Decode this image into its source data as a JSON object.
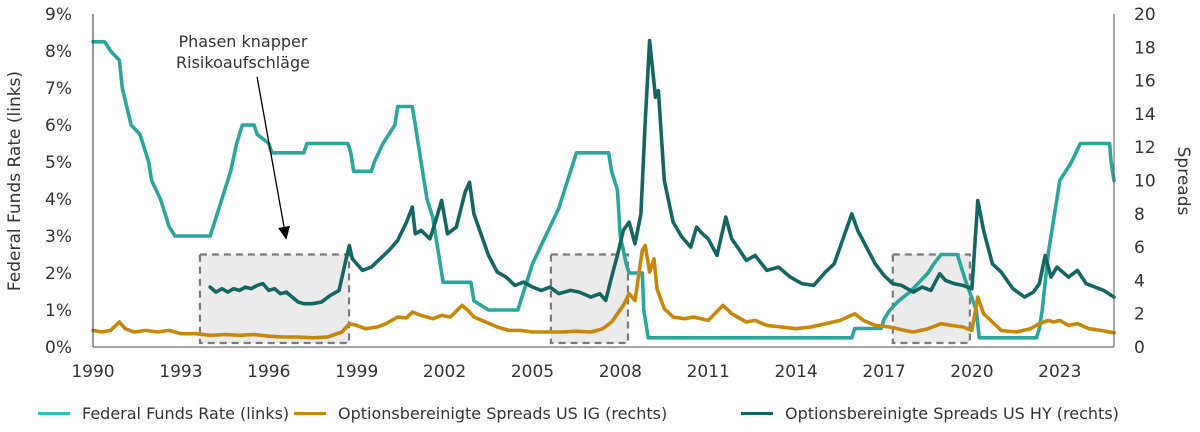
{
  "chart_data": {
    "type": "line",
    "title": "",
    "xlabel": "",
    "ylabel_left": "Federal Funds Rate (links)",
    "ylabel_right": "Spreads",
    "xlim": [
      1990,
      2024.85
    ],
    "ylim_left": [
      0,
      9
    ],
    "ylim_right": [
      0,
      20
    ],
    "grid": false,
    "x_ticks": [
      "1990",
      "1993",
      "1996",
      "1999",
      "2002",
      "2005",
      "2008",
      "2011",
      "2014",
      "2017",
      "2020",
      "2023"
    ],
    "x_tick_values": [
      1990,
      1993,
      1996,
      1999,
      2002,
      2005,
      2008,
      2011,
      2014,
      2017,
      2020,
      2023
    ],
    "y_left_ticks": [
      "0%",
      "1%",
      "2%",
      "3%",
      "4%",
      "5%",
      "6%",
      "7%",
      "8%",
      "9%"
    ],
    "y_left_tick_values": [
      0,
      1,
      2,
      3,
      4,
      5,
      6,
      7,
      8,
      9
    ],
    "y_right_ticks": [
      "0",
      "2",
      "4",
      "6",
      "8",
      "10",
      "12",
      "14",
      "16",
      "18",
      "20"
    ],
    "y_right_tick_values": [
      0,
      2,
      4,
      6,
      8,
      10,
      12,
      14,
      16,
      18,
      20
    ],
    "legend_placement": "bottom",
    "annotation": {
      "lines": [
        "Phasen knapper",
        "Risikoaufschläge"
      ],
      "arrow_from": [
        1995.6,
        7.3
      ],
      "arrow_to": [
        1996.6,
        2.9
      ]
    },
    "shaded_periods": [
      {
        "start": 1993.65,
        "end": 1998.74,
        "top_left_axis": 2.5
      },
      {
        "start": 2005.63,
        "end": 2008.26,
        "top_left_axis": 2.5
      },
      {
        "start": 2017.3,
        "end": 2019.93,
        "top_left_axis": 2.5
      }
    ],
    "series": [
      {
        "name": "Federal Funds Rate (links)",
        "axis": "left",
        "color": "#2aa79b",
        "x": [
          1990.0,
          1990.4,
          1990.6,
          1990.9,
          1991.0,
          1991.3,
          1991.6,
          1991.9,
          1992.0,
          1992.3,
          1992.6,
          1992.8,
          1994.0,
          1994.1,
          1994.3,
          1994.5,
          1994.7,
          1994.9,
          1995.1,
          1995.5,
          1995.6,
          1996.0,
          1996.1,
          1997.2,
          1997.3,
          1998.7,
          1998.8,
          1998.9,
          1999.5,
          1999.6,
          1999.9,
          2000.1,
          2000.3,
          2000.4,
          2000.9,
          2001.0,
          2001.2,
          2001.4,
          2001.6,
          2001.8,
          2001.95,
          2002.9,
          2003.0,
          2003.5,
          2004.5,
          2004.6,
          2004.8,
          2005.0,
          2005.3,
          2005.6,
          2005.9,
          2006.2,
          2006.5,
          2007.6,
          2007.7,
          2007.9,
          2008.0,
          2008.2,
          2008.3,
          2008.75,
          2008.8,
          2008.95,
          2015.9,
          2016.0,
          2016.9,
          2017.0,
          2017.2,
          2017.5,
          2017.9,
          2018.2,
          2018.5,
          2018.7,
          2018.95,
          2019.5,
          2019.6,
          2019.7,
          2019.8,
          2020.15,
          2020.25,
          2022.2,
          2022.3,
          2022.4,
          2022.5,
          2022.6,
          2022.75,
          2022.9,
          2023.0,
          2023.2,
          2023.4,
          2023.55,
          2023.7,
          2024.7,
          2024.75,
          2024.85
        ],
        "values": [
          8.25,
          8.25,
          8.0,
          7.75,
          7.0,
          6.0,
          5.75,
          5.0,
          4.5,
          4.0,
          3.25,
          3.0,
          3.0,
          3.25,
          3.75,
          4.25,
          4.75,
          5.5,
          6.0,
          6.0,
          5.75,
          5.5,
          5.25,
          5.25,
          5.5,
          5.5,
          5.25,
          4.75,
          4.75,
          5.0,
          5.5,
          5.75,
          6.0,
          6.5,
          6.5,
          6.0,
          5.0,
          4.0,
          3.5,
          2.5,
          1.75,
          1.75,
          1.25,
          1.0,
          1.0,
          1.25,
          1.75,
          2.25,
          2.75,
          3.25,
          3.75,
          4.5,
          5.25,
          5.25,
          4.75,
          4.25,
          3.0,
          2.25,
          2.0,
          2.0,
          1.0,
          0.25,
          0.25,
          0.5,
          0.5,
          0.75,
          1.0,
          1.25,
          1.5,
          1.75,
          2.0,
          2.25,
          2.5,
          2.5,
          2.25,
          2.0,
          1.75,
          1.0,
          0.25,
          0.25,
          0.5,
          1.0,
          1.75,
          2.5,
          3.25,
          4.0,
          4.5,
          4.75,
          5.0,
          5.25,
          5.5,
          5.5,
          5.0,
          4.5
        ]
      },
      {
        "name": "Optionsbereinigte Spreads US IG (rechts)",
        "axis": "right",
        "color": "#c8870a",
        "x": [
          1990.0,
          1990.3,
          1990.6,
          1990.9,
          1991.1,
          1991.4,
          1991.8,
          1992.2,
          1992.6,
          1993.0,
          1993.5,
          1994.0,
          1994.5,
          1995.0,
          1995.5,
          1996.0,
          1996.5,
          1997.0,
          1997.5,
          1998.0,
          1998.5,
          1998.75,
          1999.0,
          1999.3,
          1999.7,
          2000.0,
          2000.4,
          2000.7,
          2000.9,
          2001.2,
          2001.6,
          2001.9,
          2002.2,
          2002.6,
          2002.8,
          2003.0,
          2003.4,
          2003.8,
          2004.2,
          2004.6,
          2005.0,
          2005.5,
          2006.0,
          2006.5,
          2007.0,
          2007.4,
          2007.7,
          2007.9,
          2008.1,
          2008.3,
          2008.5,
          2008.75,
          2008.85,
          2009.0,
          2009.15,
          2009.25,
          2009.5,
          2009.8,
          2010.2,
          2010.5,
          2011.0,
          2011.5,
          2011.8,
          2012.0,
          2012.3,
          2012.6,
          2013.0,
          2013.5,
          2014.0,
          2014.5,
          2015.0,
          2015.5,
          2016.0,
          2016.3,
          2016.7,
          2017.2,
          2017.7,
          2018.0,
          2018.5,
          2018.95,
          2019.3,
          2019.7,
          2020.0,
          2020.2,
          2020.4,
          2020.7,
          2021.0,
          2021.5,
          2022.0,
          2022.3,
          2022.6,
          2022.8,
          2023.0,
          2023.3,
          2023.6,
          2024.0,
          2024.4,
          2024.85
        ],
        "values": [
          1.0,
          0.9,
          1.0,
          1.5,
          1.1,
          0.9,
          1.0,
          0.9,
          1.0,
          0.8,
          0.8,
          0.7,
          0.75,
          0.7,
          0.75,
          0.65,
          0.6,
          0.6,
          0.55,
          0.6,
          0.9,
          1.4,
          1.3,
          1.1,
          1.2,
          1.4,
          1.8,
          1.75,
          2.1,
          1.9,
          1.7,
          1.9,
          1.8,
          2.5,
          2.2,
          1.8,
          1.5,
          1.2,
          1.0,
          1.0,
          0.9,
          0.9,
          0.9,
          0.95,
          0.9,
          1.1,
          1.5,
          2.0,
          2.5,
          3.2,
          2.8,
          5.8,
          6.1,
          4.5,
          5.3,
          3.5,
          2.3,
          1.8,
          1.7,
          1.8,
          1.6,
          2.5,
          2.0,
          1.8,
          1.5,
          1.6,
          1.3,
          1.2,
          1.1,
          1.2,
          1.4,
          1.6,
          2.0,
          1.6,
          1.3,
          1.2,
          1.0,
          0.9,
          1.1,
          1.4,
          1.3,
          1.2,
          1.0,
          3.0,
          2.0,
          1.5,
          1.0,
          0.9,
          1.1,
          1.4,
          1.6,
          1.5,
          1.6,
          1.3,
          1.4,
          1.1,
          1.0,
          0.85
        ]
      },
      {
        "name": "Optionsbereinigte Spreads US HY (rechts)",
        "axis": "right",
        "color": "#136760",
        "x": [
          1994.0,
          1994.2,
          1994.4,
          1994.6,
          1994.8,
          1995.0,
          1995.2,
          1995.4,
          1995.6,
          1995.8,
          1996.0,
          1996.2,
          1996.4,
          1996.6,
          1996.8,
          1997.0,
          1997.2,
          1997.5,
          1997.8,
          1998.1,
          1998.4,
          1998.6,
          1998.75,
          1998.85,
          1999.0,
          1999.2,
          1999.5,
          1999.8,
          2000.1,
          2000.4,
          2000.7,
          2000.9,
          2001.0,
          2001.2,
          2001.5,
          2001.7,
          2001.9,
          2002.1,
          2002.4,
          2002.7,
          2002.85,
          2003.0,
          2003.2,
          2003.5,
          2003.8,
          2004.1,
          2004.4,
          2004.7,
          2005.0,
          2005.3,
          2005.6,
          2005.9,
          2006.3,
          2006.6,
          2007.0,
          2007.3,
          2007.5,
          2007.7,
          2007.9,
          2008.1,
          2008.3,
          2008.5,
          2008.7,
          2008.85,
          2009.0,
          2009.2,
          2009.3,
          2009.5,
          2009.8,
          2010.1,
          2010.4,
          2010.6,
          2010.8,
          2011.0,
          2011.3,
          2011.6,
          2011.8,
          2012.0,
          2012.3,
          2012.6,
          2013.0,
          2013.4,
          2013.8,
          2014.2,
          2014.6,
          2015.0,
          2015.3,
          2015.6,
          2015.9,
          2016.1,
          2016.4,
          2016.7,
          2017.0,
          2017.3,
          2017.6,
          2018.0,
          2018.3,
          2018.6,
          2018.9,
          2019.1,
          2019.4,
          2019.7,
          2020.0,
          2020.2,
          2020.4,
          2020.7,
          2021.0,
          2021.4,
          2021.8,
          2022.1,
          2022.3,
          2022.5,
          2022.7,
          2022.9,
          2023.1,
          2023.3,
          2023.6,
          2023.9,
          2024.2,
          2024.5,
          2024.85
        ],
        "values": [
          3.6,
          3.3,
          3.5,
          3.3,
          3.5,
          3.4,
          3.6,
          3.5,
          3.7,
          3.8,
          3.4,
          3.5,
          3.2,
          3.3,
          3.0,
          2.7,
          2.6,
          2.6,
          2.7,
          3.1,
          3.4,
          5.0,
          6.1,
          5.3,
          5.0,
          4.6,
          4.8,
          5.3,
          5.8,
          6.4,
          7.5,
          8.4,
          6.8,
          7.0,
          6.5,
          7.6,
          8.8,
          6.8,
          7.2,
          9.3,
          9.9,
          8.0,
          7.0,
          5.5,
          4.5,
          4.2,
          3.7,
          3.9,
          3.6,
          3.4,
          3.6,
          3.2,
          3.4,
          3.3,
          3.0,
          3.2,
          2.8,
          4.2,
          5.5,
          7.0,
          7.5,
          6.2,
          8.0,
          13.5,
          18.4,
          15.0,
          15.4,
          10.0,
          7.5,
          6.6,
          6.0,
          7.2,
          6.8,
          6.5,
          5.5,
          7.8,
          6.5,
          6.0,
          5.2,
          5.5,
          4.6,
          4.8,
          4.2,
          3.8,
          3.7,
          4.5,
          5.0,
          6.5,
          8.0,
          7.0,
          6.0,
          5.0,
          4.3,
          3.8,
          3.7,
          3.3,
          3.6,
          3.4,
          4.4,
          4.0,
          3.8,
          3.7,
          3.5,
          8.8,
          7.0,
          5.0,
          4.5,
          3.5,
          3.0,
          3.3,
          3.8,
          5.5,
          4.2,
          4.8,
          4.5,
          4.2,
          4.6,
          3.8,
          3.6,
          3.4,
          3.0
        ]
      }
    ]
  }
}
